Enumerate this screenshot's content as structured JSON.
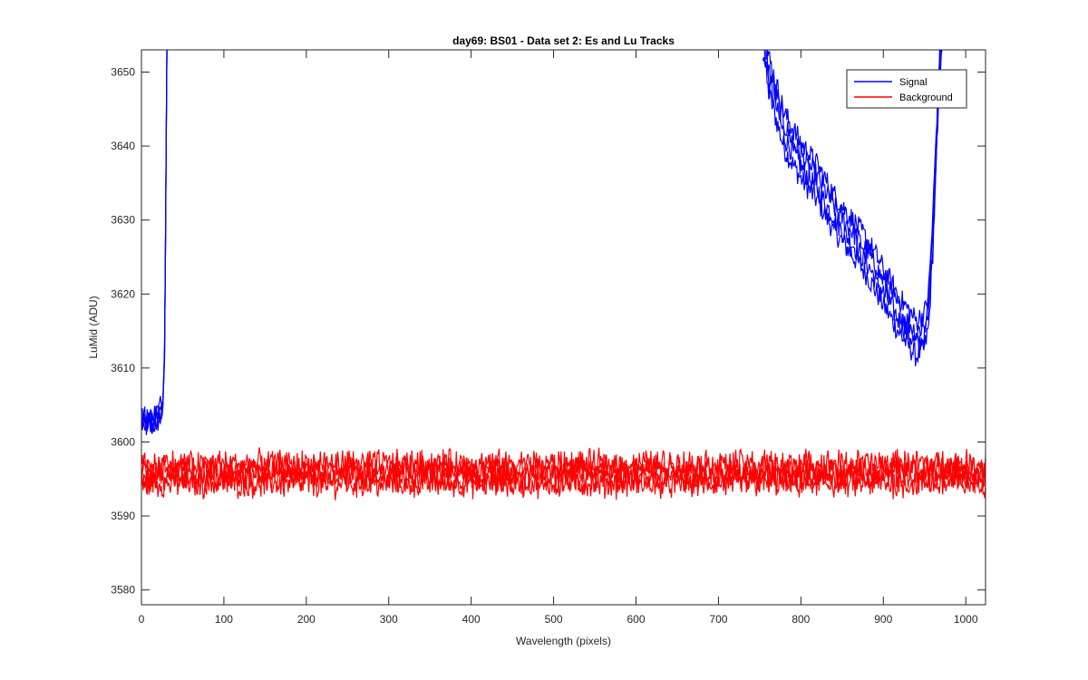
{
  "chart_data": {
    "type": "line",
    "title": "day69: BS01 - Data set 2: Es and Lu Tracks",
    "xlabel": "Wavelength (pixels)",
    "ylabel": "LuMid (ADU)",
    "xlim": [
      0,
      1024
    ],
    "ylim": [
      3578,
      3653
    ],
    "xticks": [
      0,
      100,
      200,
      300,
      400,
      500,
      600,
      700,
      800,
      900,
      1000
    ],
    "yticks": [
      3580,
      3590,
      3600,
      3610,
      3620,
      3630,
      3640,
      3650
    ],
    "legend": {
      "location": "top-right",
      "entries": [
        "Signal",
        "Background"
      ]
    },
    "series": [
      {
        "name": "Signal",
        "color": "#0000ff",
        "tracks": 4,
        "noise_amplitude": 1.6,
        "points": [
          [
            0,
            3603
          ],
          [
            10,
            3602.5
          ],
          [
            20,
            3603.5
          ],
          [
            26,
            3605
          ],
          [
            28,
            3612
          ],
          [
            29,
            3625
          ],
          [
            30,
            3640
          ],
          [
            31,
            3655
          ],
          [
            755,
            3655
          ],
          [
            760,
            3650
          ],
          [
            780,
            3642
          ],
          [
            800,
            3638
          ],
          [
            820,
            3635
          ],
          [
            840,
            3631
          ],
          [
            860,
            3628
          ],
          [
            880,
            3625
          ],
          [
            900,
            3621
          ],
          [
            920,
            3617
          ],
          [
            940,
            3614
          ],
          [
            950,
            3615
          ],
          [
            955,
            3618
          ],
          [
            960,
            3628
          ],
          [
            965,
            3642
          ],
          [
            970,
            3655
          ]
        ]
      },
      {
        "name": "Background",
        "color": "#ff0000",
        "tracks": 4,
        "noise_amplitude": 1.7,
        "levels": [
          3594.4,
          3595.3,
          3596.2,
          3597.0
        ],
        "points": [
          [
            0,
            3595.7
          ],
          [
            1024,
            3595.7
          ]
        ]
      }
    ]
  }
}
